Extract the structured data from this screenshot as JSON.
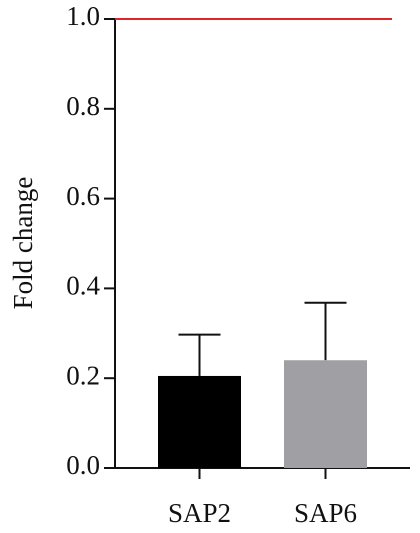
{
  "chart_data": {
    "type": "bar",
    "y_label": "Fold change",
    "categories": [
      "SAP2",
      "SAP6"
    ],
    "values": [
      0.205,
      0.24
    ],
    "errors": [
      0.092,
      0.128
    ],
    "colors": [
      "#000000",
      "#a0a0a4"
    ],
    "ylim": [
      0,
      1
    ],
    "yticks": [
      {
        "value": 0,
        "label": "0.0"
      },
      0.2,
      0.4,
      0.6,
      0.8,
      {
        "value": 1,
        "label": "1.0"
      }
    ],
    "reference_line": {
      "value": 1,
      "color": "#e0242a"
    }
  }
}
